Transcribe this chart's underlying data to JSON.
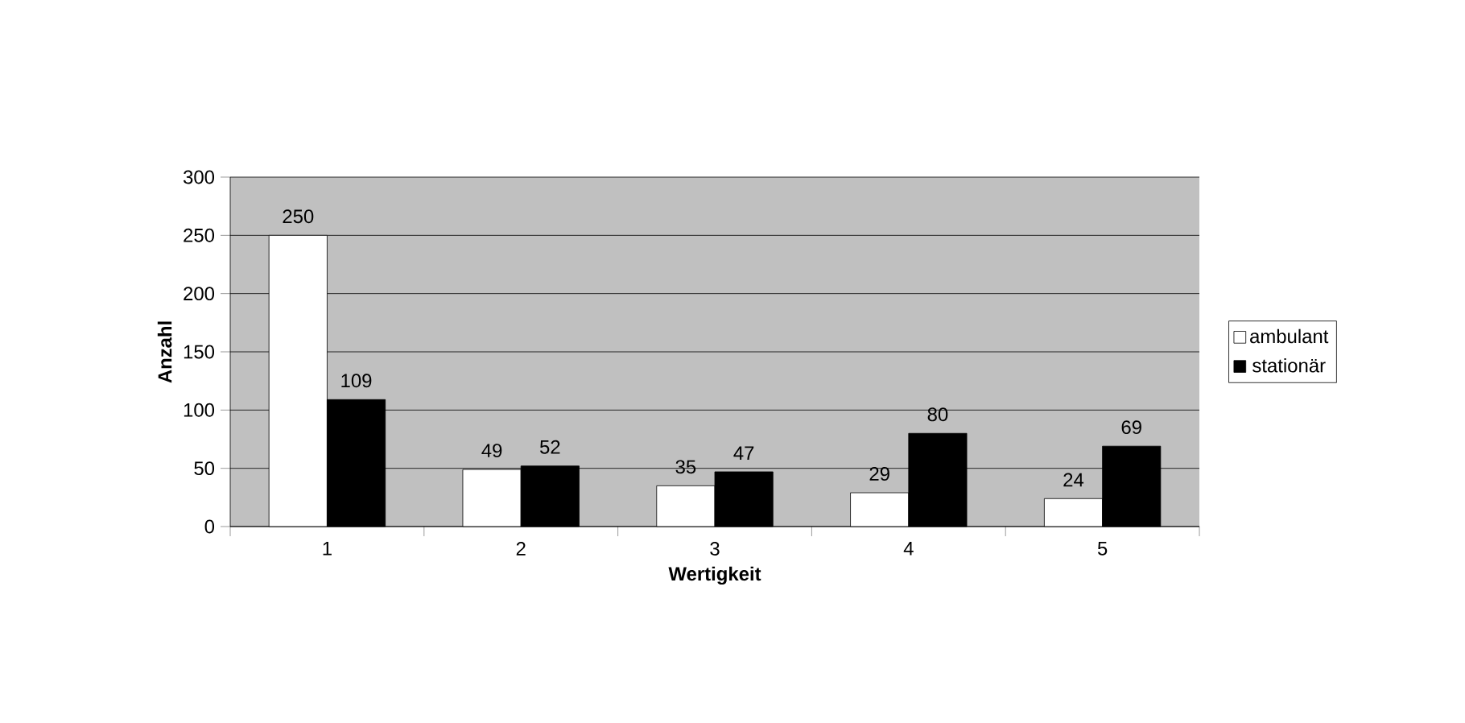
{
  "chart_data": {
    "type": "bar",
    "xlabel": "Wertigkeit",
    "ylabel": "Anzahl",
    "categories": [
      "1",
      "2",
      "3",
      "4",
      "5"
    ],
    "series": [
      {
        "name": "ambulant",
        "color": "#ffffff",
        "values": [
          250,
          49,
          35,
          29,
          24
        ]
      },
      {
        "name": "stationär",
        "color": "#000000",
        "values": [
          109,
          52,
          47,
          80,
          69
        ]
      }
    ],
    "ylim": [
      0,
      300
    ],
    "yticks": [
      0,
      50,
      100,
      150,
      200,
      250,
      300
    ],
    "grid": "y",
    "legend": "right",
    "data_labels": true
  }
}
